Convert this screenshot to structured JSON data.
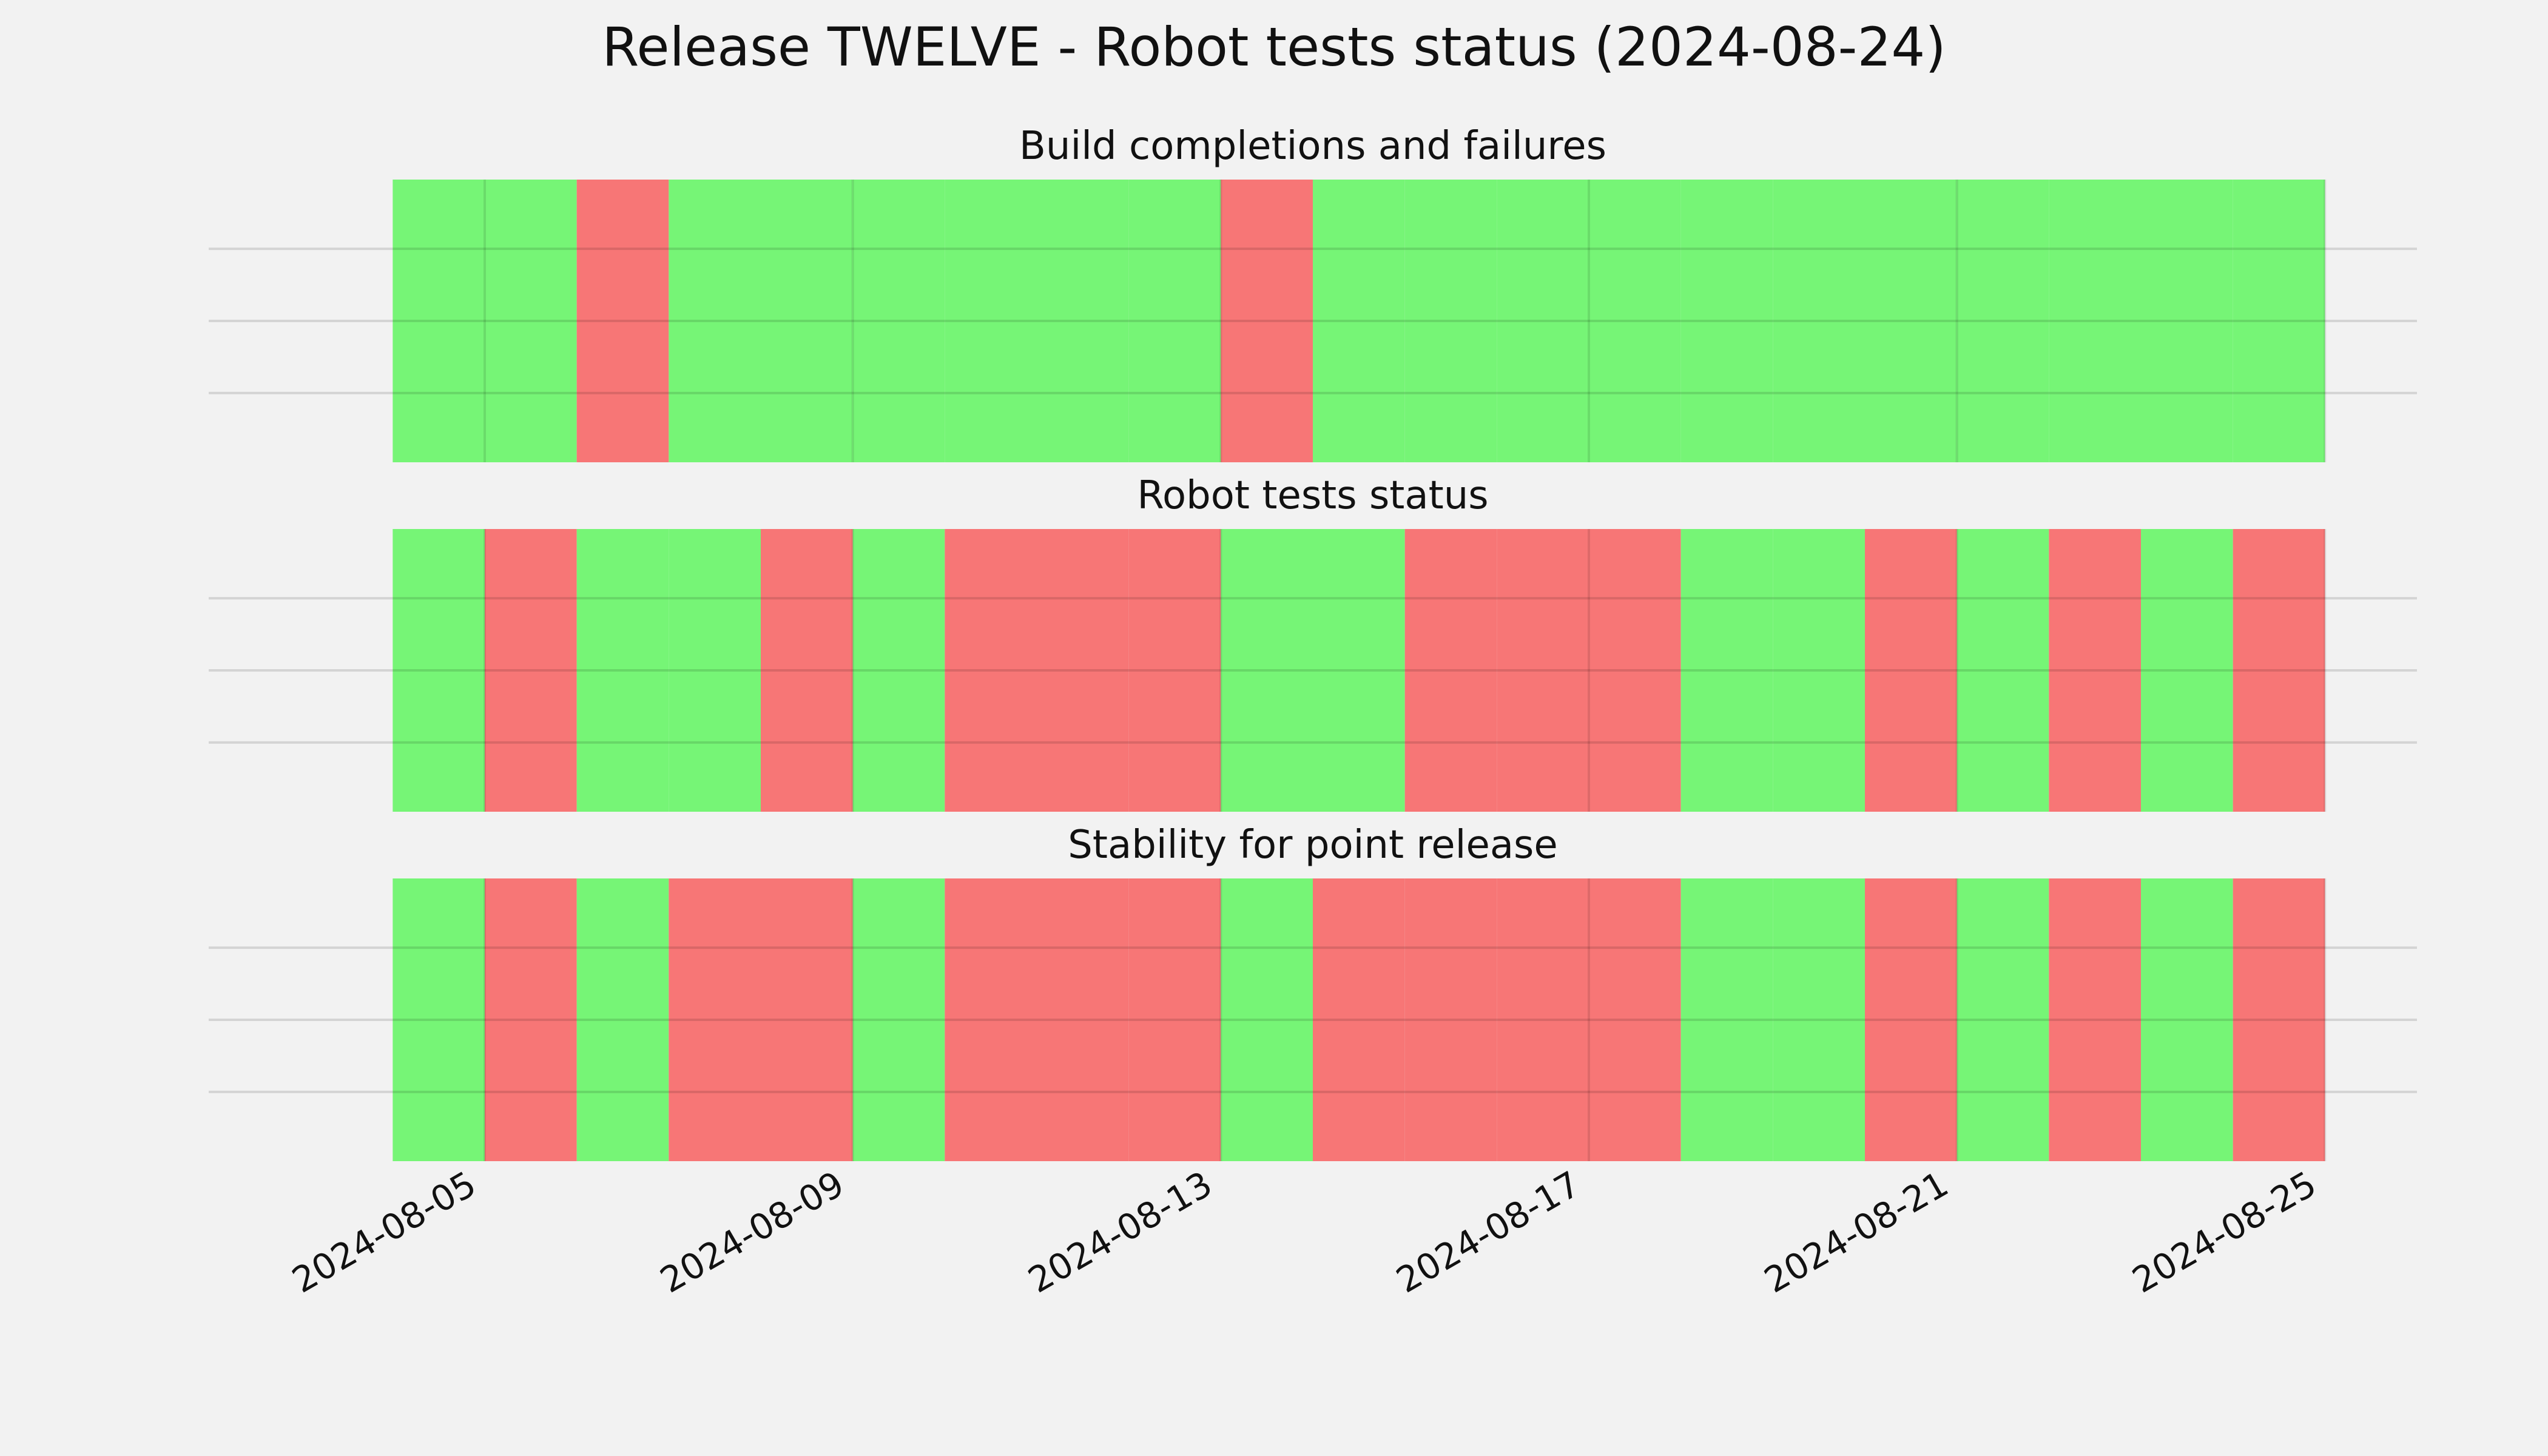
{
  "chart_data": {
    "type": "bar",
    "title": "Release TWELVE - Robot tests status (2024-08-24)",
    "x_range": [
      "2024-08-04",
      "2024-08-25"
    ],
    "xlim": [
      "2024-08-02",
      "2024-08-26"
    ],
    "x_ticks": [
      "2024-08-05",
      "2024-08-09",
      "2024-08-13",
      "2024-08-17",
      "2024-08-21",
      "2024-08-25"
    ],
    "grid": true,
    "status_colors": {
      "pass": "#76f576",
      "fail": "#f77676"
    },
    "panels": [
      {
        "title": "Build completions and failures",
        "days": [
          {
            "date": "2024-08-04",
            "status": "pass"
          },
          {
            "date": "2024-08-05",
            "status": "pass"
          },
          {
            "date": "2024-08-06",
            "status": "fail"
          },
          {
            "date": "2024-08-07",
            "status": "pass"
          },
          {
            "date": "2024-08-08",
            "status": "pass"
          },
          {
            "date": "2024-08-09",
            "status": "pass"
          },
          {
            "date": "2024-08-10",
            "status": "pass"
          },
          {
            "date": "2024-08-11",
            "status": "pass"
          },
          {
            "date": "2024-08-12",
            "status": "pass"
          },
          {
            "date": "2024-08-13",
            "status": "fail"
          },
          {
            "date": "2024-08-14",
            "status": "pass"
          },
          {
            "date": "2024-08-15",
            "status": "pass"
          },
          {
            "date": "2024-08-16",
            "status": "pass"
          },
          {
            "date": "2024-08-17",
            "status": "pass"
          },
          {
            "date": "2024-08-18",
            "status": "pass"
          },
          {
            "date": "2024-08-19",
            "status": "pass"
          },
          {
            "date": "2024-08-20",
            "status": "pass"
          },
          {
            "date": "2024-08-21",
            "status": "pass"
          },
          {
            "date": "2024-08-22",
            "status": "pass"
          },
          {
            "date": "2024-08-23",
            "status": "pass"
          },
          {
            "date": "2024-08-24",
            "status": "pass"
          }
        ]
      },
      {
        "title": "Robot tests status",
        "days": [
          {
            "date": "2024-08-04",
            "status": "pass"
          },
          {
            "date": "2024-08-05",
            "status": "fail"
          },
          {
            "date": "2024-08-06",
            "status": "pass"
          },
          {
            "date": "2024-08-07",
            "status": "pass"
          },
          {
            "date": "2024-08-08",
            "status": "fail"
          },
          {
            "date": "2024-08-09",
            "status": "pass"
          },
          {
            "date": "2024-08-10",
            "status": "fail"
          },
          {
            "date": "2024-08-11",
            "status": "fail"
          },
          {
            "date": "2024-08-12",
            "status": "fail"
          },
          {
            "date": "2024-08-13",
            "status": "pass"
          },
          {
            "date": "2024-08-14",
            "status": "pass"
          },
          {
            "date": "2024-08-15",
            "status": "fail"
          },
          {
            "date": "2024-08-16",
            "status": "fail"
          },
          {
            "date": "2024-08-17",
            "status": "fail"
          },
          {
            "date": "2024-08-18",
            "status": "pass"
          },
          {
            "date": "2024-08-19",
            "status": "pass"
          },
          {
            "date": "2024-08-20",
            "status": "fail"
          },
          {
            "date": "2024-08-21",
            "status": "pass"
          },
          {
            "date": "2024-08-22",
            "status": "fail"
          },
          {
            "date": "2024-08-23",
            "status": "pass"
          },
          {
            "date": "2024-08-24",
            "status": "fail"
          }
        ]
      },
      {
        "title": "Stability for point release",
        "days": [
          {
            "date": "2024-08-04",
            "status": "pass"
          },
          {
            "date": "2024-08-05",
            "status": "fail"
          },
          {
            "date": "2024-08-06",
            "status": "pass"
          },
          {
            "date": "2024-08-07",
            "status": "fail"
          },
          {
            "date": "2024-08-08",
            "status": "fail"
          },
          {
            "date": "2024-08-09",
            "status": "pass"
          },
          {
            "date": "2024-08-10",
            "status": "fail"
          },
          {
            "date": "2024-08-11",
            "status": "fail"
          },
          {
            "date": "2024-08-12",
            "status": "fail"
          },
          {
            "date": "2024-08-13",
            "status": "pass"
          },
          {
            "date": "2024-08-14",
            "status": "fail"
          },
          {
            "date": "2024-08-15",
            "status": "fail"
          },
          {
            "date": "2024-08-16",
            "status": "fail"
          },
          {
            "date": "2024-08-17",
            "status": "fail"
          },
          {
            "date": "2024-08-18",
            "status": "pass"
          },
          {
            "date": "2024-08-19",
            "status": "pass"
          },
          {
            "date": "2024-08-20",
            "status": "fail"
          },
          {
            "date": "2024-08-21",
            "status": "pass"
          },
          {
            "date": "2024-08-22",
            "status": "fail"
          },
          {
            "date": "2024-08-23",
            "status": "pass"
          },
          {
            "date": "2024-08-24",
            "status": "fail"
          }
        ]
      }
    ]
  }
}
